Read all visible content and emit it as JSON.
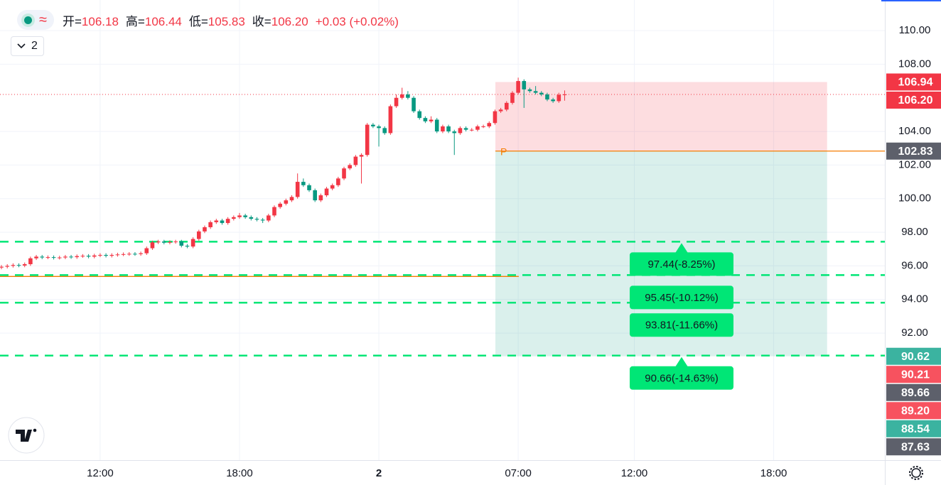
{
  "chart_data": {
    "type": "candlestick",
    "header": [
      [
        "开=",
        "106.18"
      ],
      [
        "高=",
        "106.44"
      ],
      [
        "低=",
        "105.83"
      ],
      [
        "收=",
        "106.20"
      ]
    ],
    "change": "+0.03 (+0.02%)",
    "toggle_label": "2",
    "up_color": "#f23645",
    "down_color": "#089981",
    "xlim": [
      -0.25,
      152.15
    ],
    "xticks": [
      {
        "value": 17,
        "label": "12:00"
      },
      {
        "value": 41,
        "label": "18:00"
      },
      {
        "value": 65,
        "label": "2"
      },
      {
        "value": 89,
        "label": "07:00"
      },
      {
        "value": 109,
        "label": "12:00"
      },
      {
        "value": 133,
        "label": "18:00"
      }
    ],
    "ylim": [
      84.44,
      111.82
    ],
    "yticks": [
      {
        "value": 92,
        "label": "92.00"
      },
      {
        "value": 94,
        "label": "94.00"
      },
      {
        "value": 96,
        "label": "96.00"
      },
      {
        "value": 98,
        "label": "98.00"
      },
      {
        "value": 100,
        "label": "100.00"
      },
      {
        "value": 102,
        "label": "102.00"
      },
      {
        "value": 104,
        "label": "104.00"
      },
      {
        "value": 108,
        "label": "108.00"
      },
      {
        "value": 110,
        "label": "110.00"
      }
    ],
    "grid": true,
    "candles": [
      [
        95.9,
        96.05,
        95.8,
        95.95
      ],
      [
        95.95,
        96.1,
        95.85,
        96.0
      ],
      [
        96.0,
        96.15,
        95.9,
        96.05
      ],
      [
        96.05,
        96.15,
        95.92,
        96.02
      ],
      [
        96.02,
        96.2,
        95.92,
        96.1
      ],
      [
        96.1,
        96.55,
        96.0,
        96.45
      ],
      [
        96.45,
        96.65,
        96.35,
        96.55
      ],
      [
        96.55,
        96.65,
        96.4,
        96.5
      ],
      [
        96.5,
        96.62,
        96.4,
        96.52
      ],
      [
        96.52,
        96.62,
        96.38,
        96.48
      ],
      [
        96.48,
        96.6,
        96.38,
        96.5
      ],
      [
        96.5,
        96.65,
        96.4,
        96.55
      ],
      [
        96.55,
        96.65,
        96.42,
        96.52
      ],
      [
        96.52,
        96.68,
        96.42,
        96.58
      ],
      [
        96.58,
        96.7,
        96.48,
        96.6
      ],
      [
        96.6,
        96.7,
        96.45,
        96.55
      ],
      [
        96.55,
        96.72,
        96.45,
        96.62
      ],
      [
        96.62,
        96.75,
        96.52,
        96.65
      ],
      [
        96.65,
        96.75,
        96.5,
        96.6
      ],
      [
        96.6,
        96.75,
        96.5,
        96.65
      ],
      [
        96.65,
        96.78,
        96.55,
        96.68
      ],
      [
        96.68,
        96.8,
        96.58,
        96.7
      ],
      [
        96.7,
        96.82,
        96.6,
        96.72
      ],
      [
        96.72,
        96.82,
        96.6,
        96.7
      ],
      [
        96.7,
        96.85,
        96.6,
        96.75
      ],
      [
        96.75,
        97.15,
        96.65,
        97.05
      ],
      [
        97.05,
        97.5,
        96.95,
        97.4
      ],
      [
        97.4,
        97.55,
        97.3,
        97.45
      ],
      [
        97.45,
        97.55,
        97.28,
        97.38
      ],
      [
        97.38,
        97.52,
        97.28,
        97.42
      ],
      [
        97.42,
        97.55,
        97.32,
        97.45
      ],
      [
        97.45,
        97.55,
        97.1,
        97.2
      ],
      [
        97.2,
        97.3,
        97.05,
        97.15
      ],
      [
        97.15,
        97.7,
        97.05,
        97.6
      ],
      [
        97.6,
        98.15,
        97.5,
        98.05
      ],
      [
        98.05,
        98.4,
        97.95,
        98.3
      ],
      [
        98.3,
        98.7,
        98.2,
        98.6
      ],
      [
        98.6,
        98.8,
        98.5,
        98.7
      ],
      [
        98.7,
        98.8,
        98.45,
        98.55
      ],
      [
        98.55,
        98.9,
        98.45,
        98.8
      ],
      [
        98.8,
        99.0,
        98.7,
        98.9
      ],
      [
        98.9,
        99.15,
        98.8,
        99.0
      ],
      [
        99.0,
        99.1,
        98.8,
        98.9
      ],
      [
        98.9,
        99.0,
        98.7,
        98.8
      ],
      [
        98.8,
        98.9,
        98.65,
        98.75
      ],
      [
        98.75,
        98.85,
        98.55,
        98.7
      ],
      [
        98.7,
        99.1,
        98.6,
        99.0
      ],
      [
        99.0,
        99.6,
        98.9,
        99.5
      ],
      [
        99.5,
        99.8,
        99.4,
        99.7
      ],
      [
        99.7,
        100.0,
        99.6,
        99.9
      ],
      [
        99.9,
        100.2,
        99.8,
        100.1
      ],
      [
        100.1,
        101.5,
        100.0,
        101.0
      ],
      [
        101.0,
        101.2,
        100.7,
        100.8
      ],
      [
        100.8,
        100.9,
        100.4,
        100.5
      ],
      [
        100.5,
        100.6,
        99.8,
        99.9
      ],
      [
        99.9,
        100.3,
        99.8,
        100.2
      ],
      [
        100.2,
        100.7,
        100.1,
        100.6
      ],
      [
        100.6,
        100.9,
        100.5,
        100.8
      ],
      [
        100.8,
        101.3,
        100.7,
        101.2
      ],
      [
        101.2,
        101.9,
        101.1,
        101.8
      ],
      [
        101.8,
        102.1,
        101.7,
        102.0
      ],
      [
        102.0,
        102.6,
        101.9,
        102.5
      ],
      [
        102.5,
        102.7,
        100.9,
        102.6
      ],
      [
        102.6,
        104.5,
        102.5,
        104.4
      ],
      [
        104.4,
        104.5,
        104.2,
        104.3
      ],
      [
        104.3,
        104.4,
        103.1,
        104.2
      ],
      [
        104.2,
        104.3,
        103.8,
        103.9
      ],
      [
        103.9,
        105.6,
        103.8,
        105.5
      ],
      [
        105.5,
        106.2,
        105.4,
        106.0
      ],
      [
        106.0,
        106.6,
        105.9,
        106.2
      ],
      [
        106.2,
        106.4,
        105.9,
        106.0
      ],
      [
        106.0,
        106.1,
        105.1,
        105.2
      ],
      [
        105.2,
        105.3,
        104.7,
        104.8
      ],
      [
        104.8,
        104.9,
        104.5,
        104.6
      ],
      [
        104.6,
        104.9,
        104.5,
        104.7
      ],
      [
        104.7,
        104.8,
        103.9,
        104.0
      ],
      [
        104.0,
        104.4,
        103.9,
        104.3
      ],
      [
        104.3,
        104.4,
        103.9,
        104.0
      ],
      [
        104.0,
        104.1,
        102.6,
        103.9
      ],
      [
        103.9,
        104.3,
        103.8,
        104.2
      ],
      [
        104.2,
        104.3,
        104.0,
        104.1
      ],
      [
        104.1,
        104.2,
        104.0,
        104.1
      ],
      [
        104.1,
        104.4,
        104.0,
        104.3
      ],
      [
        104.3,
        104.4,
        104.2,
        104.3
      ],
      [
        104.3,
        104.6,
        104.2,
        104.5
      ],
      [
        104.5,
        105.3,
        104.4,
        105.2
      ],
      [
        105.2,
        105.4,
        105.1,
        105.3
      ],
      [
        105.3,
        105.8,
        105.2,
        105.7
      ],
      [
        105.7,
        106.4,
        105.6,
        106.3
      ],
      [
        106.3,
        107.2,
        106.2,
        107.0
      ],
      [
        107.0,
        107.1,
        105.4,
        106.5
      ],
      [
        106.5,
        106.6,
        106.3,
        106.4
      ],
      [
        106.4,
        106.7,
        106.2,
        106.3
      ],
      [
        106.3,
        106.4,
        106.1,
        106.2
      ],
      [
        106.2,
        106.3,
        105.8,
        105.9
      ],
      [
        105.9,
        106.0,
        105.7,
        105.8
      ],
      [
        105.8,
        106.3,
        105.7,
        106.18
      ],
      [
        106.18,
        106.44,
        105.83,
        106.2
      ]
    ],
    "position": {
      "top": 106.94,
      "entry": 102.83,
      "bottom": 90.62,
      "xrange": [
        85.07,
        142.2
      ],
      "entry_label": "P"
    },
    "hline": {
      "value": 95.37,
      "x_end": 89.1,
      "color": "#f57c00"
    },
    "levels": [
      {
        "value": 97.44,
        "label": "97.44(-8.25%)"
      },
      {
        "value": 95.45,
        "label": "95.45(-10.12%)"
      },
      {
        "value": 93.81,
        "label": "93.81(-11.66%)"
      },
      {
        "value": 90.66,
        "label": "90.66(-14.63%)"
      }
    ],
    "level_color": "#00e676",
    "price_labels": [
      {
        "value": 106.94,
        "label": "106.94",
        "color": "#f23645"
      },
      {
        "value": 106.2,
        "label": "106.20",
        "color": "#f23645"
      },
      {
        "value": 102.83,
        "label": "102.83",
        "color": "#5d606b"
      },
      {
        "value": 90.62,
        "label": "90.62",
        "color": "#3bb3a0"
      },
      {
        "value": 90.21,
        "label": "90.21",
        "color": "#f7525f"
      },
      {
        "value": 89.66,
        "label": "89.66",
        "color": "#5d606b"
      },
      {
        "value": 89.2,
        "label": "89.20",
        "color": "#f7525f"
      },
      {
        "value": 88.54,
        "label": "88.54",
        "color": "#3bb3a0"
      },
      {
        "value": 87.63,
        "label": "87.63",
        "color": "#5d606b"
      }
    ]
  }
}
